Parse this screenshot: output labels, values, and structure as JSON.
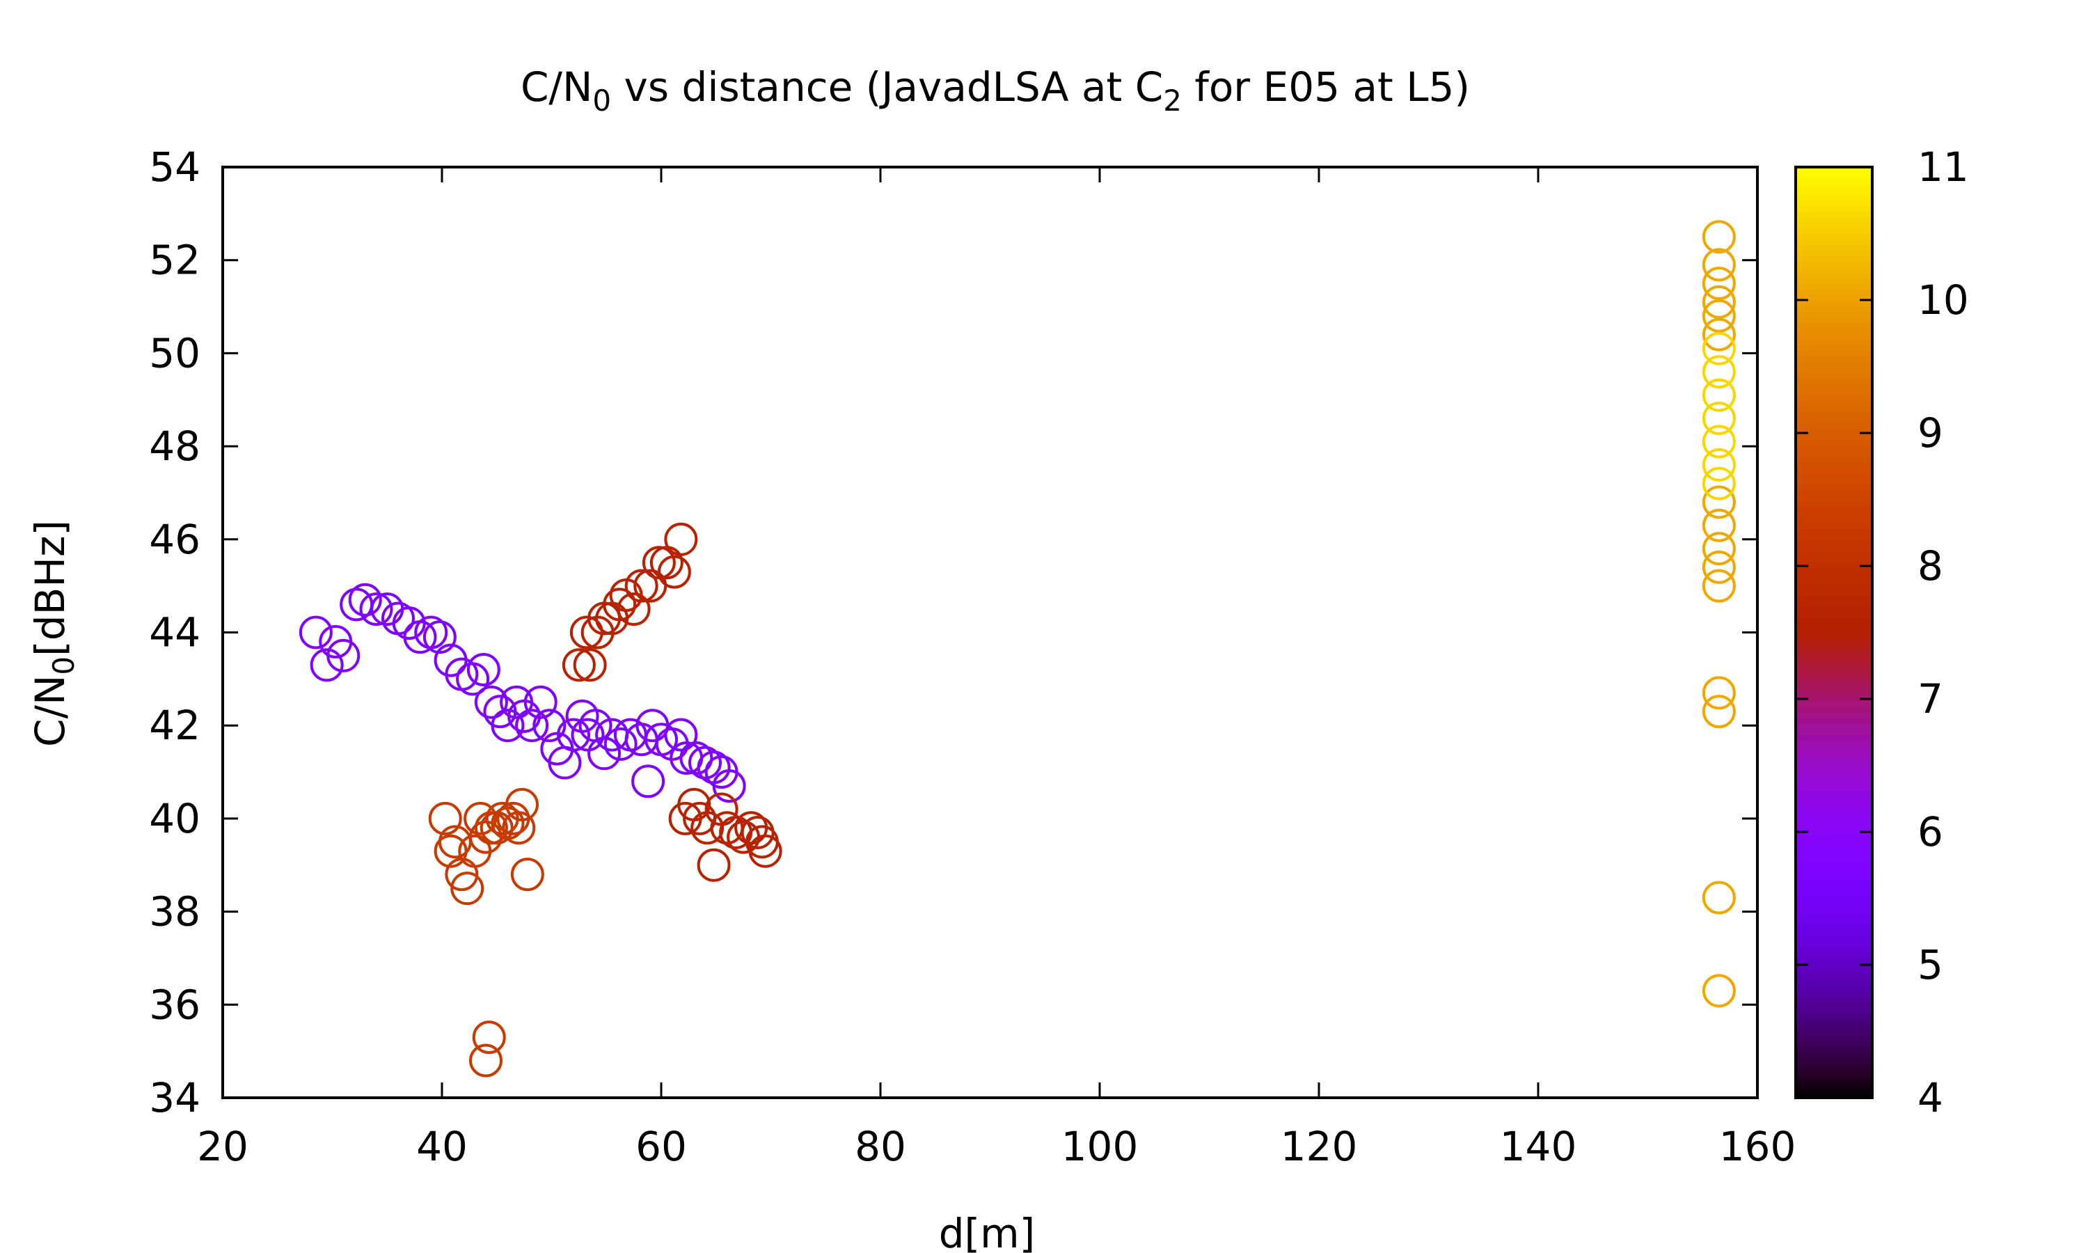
{
  "chart_data": {
    "type": "scatter",
    "title": {
      "prefix": "C/N",
      "sub1": "0",
      "middle": " vs distance (JavadLSA at C",
      "sub2": "2",
      "suffix": " for E05 at L5)"
    },
    "xlabel": "d[m]",
    "ylabel": {
      "prefix": "C/N",
      "sub": "0",
      "suffix": "[dBHz]"
    },
    "xlim": [
      20,
      160
    ],
    "ylim": [
      34,
      54
    ],
    "xticks": [
      20,
      40,
      60,
      80,
      100,
      120,
      140,
      160
    ],
    "yticks": [
      34,
      36,
      38,
      40,
      42,
      44,
      46,
      48,
      50,
      52,
      54
    ],
    "colorbar": {
      "range": [
        4,
        11
      ],
      "ticks": [
        4,
        5,
        6,
        7,
        8,
        9,
        10,
        11
      ],
      "palette": "gnuplot-black-purple-red-yellow",
      "placement": "right"
    },
    "marker": "open-circle",
    "grid": false,
    "series": [
      {
        "color_value": 5.7,
        "points": [
          [
            28.5,
            44.0
          ],
          [
            29.5,
            43.3
          ],
          [
            30.3,
            43.8
          ],
          [
            31.0,
            43.5
          ],
          [
            32.2,
            44.6
          ],
          [
            33.0,
            44.7
          ],
          [
            34.0,
            44.5
          ],
          [
            35.0,
            44.5
          ],
          [
            36.0,
            44.3
          ],
          [
            37.0,
            44.2
          ],
          [
            38.0,
            43.9
          ],
          [
            39.0,
            44.0
          ],
          [
            39.8,
            43.9
          ],
          [
            40.8,
            43.4
          ],
          [
            41.8,
            43.1
          ],
          [
            42.8,
            43.0
          ],
          [
            43.8,
            43.2
          ],
          [
            44.5,
            42.5
          ],
          [
            45.3,
            42.3
          ],
          [
            46.0,
            42.0
          ],
          [
            46.8,
            42.5
          ],
          [
            47.5,
            42.2
          ],
          [
            48.2,
            42.0
          ],
          [
            49.0,
            42.5
          ],
          [
            49.8,
            42.0
          ],
          [
            50.5,
            41.5
          ],
          [
            51.2,
            41.2
          ],
          [
            52.0,
            41.8
          ],
          [
            52.8,
            42.2
          ],
          [
            53.3,
            41.8
          ],
          [
            54.0,
            42.0
          ],
          [
            54.8,
            41.4
          ],
          [
            55.5,
            41.8
          ],
          [
            56.3,
            41.6
          ],
          [
            57.2,
            41.8
          ],
          [
            58.2,
            41.7
          ],
          [
            58.8,
            40.8
          ],
          [
            59.2,
            42.0
          ],
          [
            60.0,
            41.7
          ],
          [
            61.0,
            41.6
          ],
          [
            61.8,
            41.8
          ],
          [
            62.3,
            41.3
          ],
          [
            63.2,
            41.3
          ],
          [
            64.0,
            41.2
          ],
          [
            64.8,
            41.1
          ],
          [
            65.5,
            41.0
          ],
          [
            66.2,
            40.7
          ]
        ]
      },
      {
        "color_value": 7.6,
        "points": [
          [
            52.5,
            43.3
          ],
          [
            53.2,
            44.0
          ],
          [
            53.5,
            43.3
          ],
          [
            54.2,
            44.0
          ],
          [
            54.8,
            44.3
          ],
          [
            55.5,
            44.3
          ],
          [
            56.2,
            44.6
          ],
          [
            56.8,
            44.8
          ],
          [
            57.5,
            44.5
          ],
          [
            58.2,
            45.0
          ],
          [
            59.0,
            45.0
          ],
          [
            59.8,
            45.5
          ],
          [
            60.5,
            45.5
          ],
          [
            61.2,
            45.3
          ],
          [
            61.8,
            46.0
          ],
          [
            62.2,
            40.0
          ],
          [
            63.0,
            40.3
          ],
          [
            63.5,
            40.0
          ],
          [
            64.2,
            39.8
          ],
          [
            64.8,
            39.0
          ],
          [
            65.5,
            40.2
          ],
          [
            66.0,
            39.8
          ],
          [
            66.8,
            39.7
          ],
          [
            67.5,
            39.6
          ],
          [
            68.2,
            39.8
          ],
          [
            68.8,
            39.7
          ],
          [
            69.2,
            39.5
          ],
          [
            69.5,
            39.3
          ]
        ]
      },
      {
        "color_value": 8.3,
        "points": [
          [
            40.3,
            40.0
          ],
          [
            40.8,
            39.3
          ],
          [
            41.2,
            39.5
          ],
          [
            41.8,
            38.8
          ],
          [
            42.3,
            38.5
          ],
          [
            43.0,
            39.3
          ],
          [
            43.5,
            40.0
          ],
          [
            44.0,
            39.6
          ],
          [
            44.5,
            39.8
          ],
          [
            45.0,
            39.8
          ],
          [
            45.5,
            40.0
          ],
          [
            46.0,
            39.9
          ],
          [
            46.5,
            40.0
          ],
          [
            47.0,
            39.8
          ],
          [
            47.3,
            40.3
          ],
          [
            47.8,
            38.8
          ],
          [
            44.0,
            34.8
          ],
          [
            44.3,
            35.3
          ]
        ]
      },
      {
        "color_value": 10.1,
        "points": [
          [
            156.5,
            52.5
          ],
          [
            156.5,
            51.9
          ],
          [
            156.5,
            51.5
          ],
          [
            156.5,
            51.1
          ],
          [
            156.5,
            50.8
          ],
          [
            156.5,
            50.4
          ],
          [
            156.5,
            45.0
          ],
          [
            156.5,
            45.4
          ],
          [
            156.5,
            45.8
          ],
          [
            156.5,
            46.3
          ],
          [
            156.5,
            46.8
          ],
          [
            156.5,
            42.7
          ],
          [
            156.5,
            42.3
          ],
          [
            156.5,
            38.3
          ],
          [
            156.5,
            36.3
          ]
        ]
      },
      {
        "color_value": 10.6,
        "points": [
          [
            156.5,
            50.1
          ],
          [
            156.5,
            49.6
          ],
          [
            156.5,
            49.1
          ],
          [
            156.5,
            48.6
          ],
          [
            156.5,
            48.1
          ],
          [
            156.5,
            47.6
          ],
          [
            156.5,
            47.2
          ]
        ]
      }
    ]
  }
}
